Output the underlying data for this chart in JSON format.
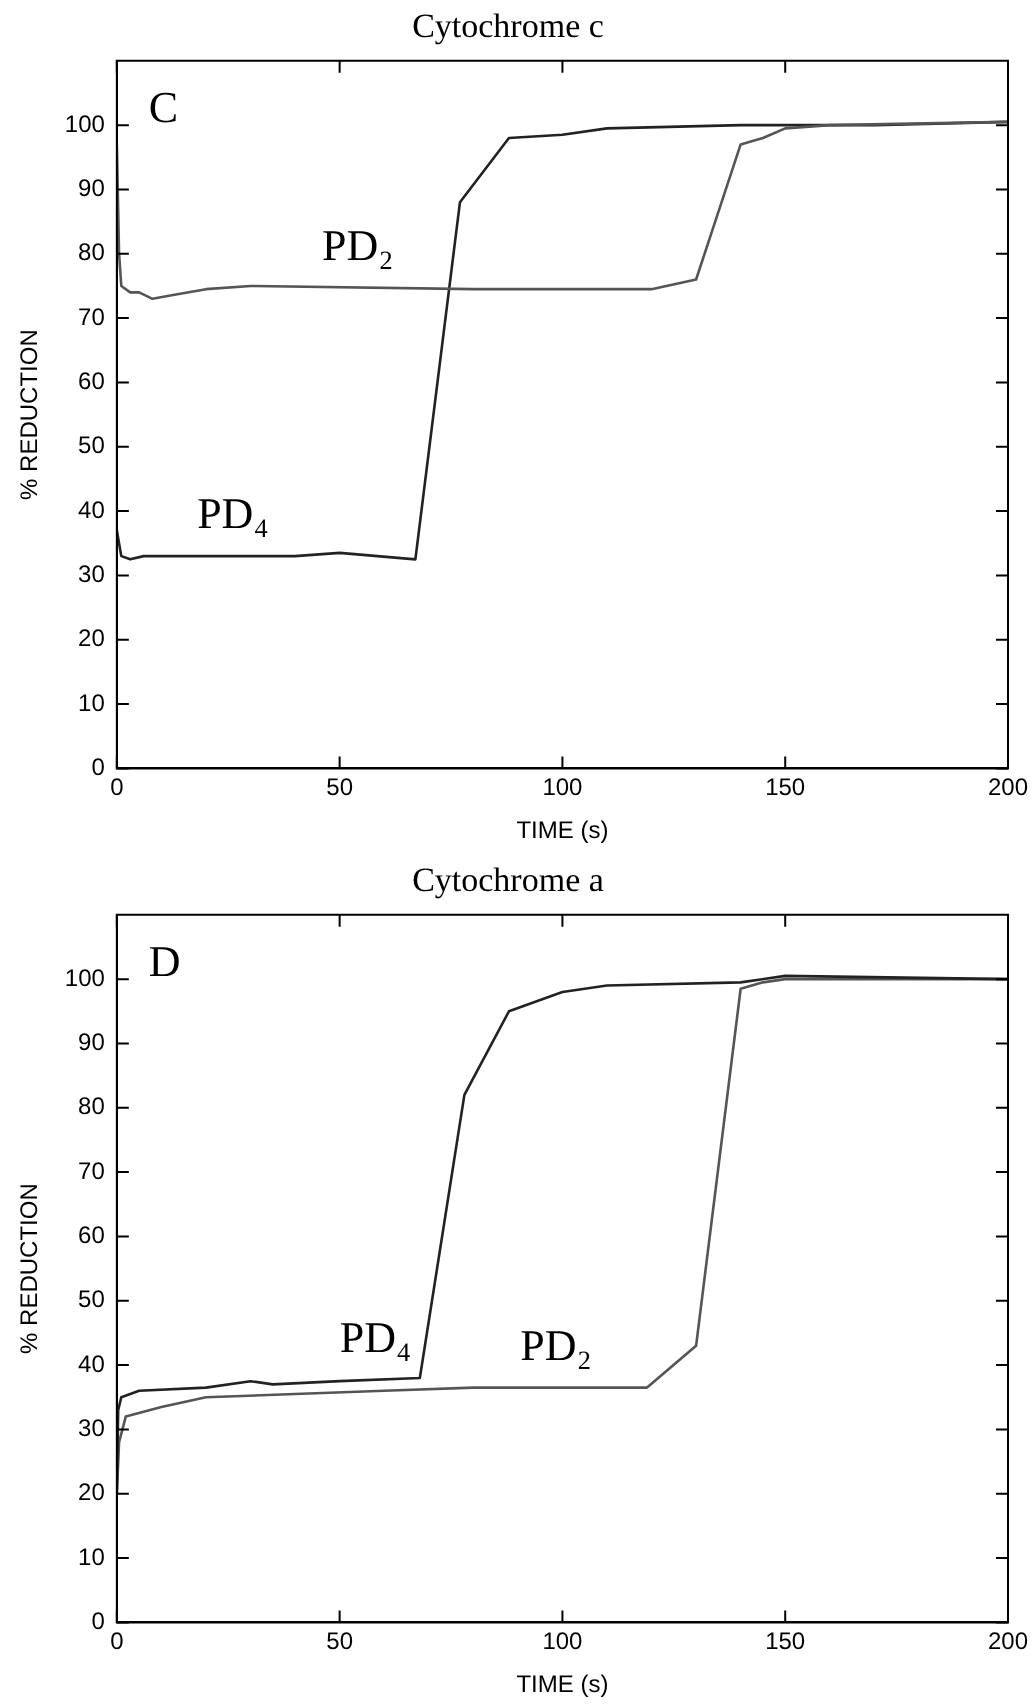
{
  "chart_data": [
    {
      "type": "line",
      "title": "Cytochrome c",
      "xlabel": "TIME (s)",
      "ylabel": "% REDUCTION",
      "annotations": [
        "C"
      ],
      "xlim": [
        0,
        200
      ],
      "xticks": [
        0,
        50,
        100,
        150,
        200
      ],
      "ylim": [
        0,
        110
      ],
      "yticks": [
        0,
        10,
        20,
        30,
        40,
        50,
        60,
        70,
        80,
        90,
        100
      ],
      "grid": false,
      "legend": false,
      "marker": "none",
      "line_style": "solid",
      "series": [
        {
          "name": "PD₂",
          "color": "#555555",
          "x": [
            0,
            0.5,
            1,
            3,
            5,
            8,
            12,
            20,
            30,
            80,
            120,
            130,
            140,
            145,
            150,
            160,
            200
          ],
          "values": [
            97,
            80,
            75,
            74,
            74,
            73,
            73.5,
            74.5,
            75,
            74.5,
            74.5,
            76,
            97,
            98,
            99.5,
            100,
            100.5
          ]
        },
        {
          "name": "PD₄",
          "color": "#222222",
          "x": [
            0,
            1,
            3,
            6,
            14,
            40,
            50,
            67,
            77,
            88,
            100,
            110,
            140,
            170,
            200
          ],
          "values": [
            37,
            33,
            32.5,
            33,
            33,
            33,
            33.5,
            32.5,
            88,
            98,
            98.5,
            99.5,
            100,
            100,
            100.5
          ]
        }
      ]
    },
    {
      "type": "line",
      "title": "Cytochrome a",
      "xlabel": "TIME (s)",
      "ylabel": "% REDUCTION",
      "annotations": [
        "D"
      ],
      "xlim": [
        0,
        200
      ],
      "xticks": [
        0,
        50,
        100,
        150,
        200
      ],
      "ylim": [
        0,
        110
      ],
      "yticks": [
        0,
        10,
        20,
        30,
        40,
        50,
        60,
        70,
        80,
        90,
        100
      ],
      "grid": false,
      "legend": false,
      "marker": "none",
      "line_style": "solid",
      "series": [
        {
          "name": "PD₄",
          "color": "#222222",
          "x": [
            0,
            0.3,
            1,
            5,
            20,
            30,
            35,
            50,
            68,
            78,
            88,
            100,
            110,
            140,
            150,
            200
          ],
          "values": [
            20,
            33,
            35,
            36,
            36.5,
            37.5,
            37,
            37.5,
            38,
            82,
            95,
            98,
            99,
            99.5,
            100.5,
            100
          ]
        },
        {
          "name": "PD₂",
          "color": "#555555",
          "x": [
            0,
            0.5,
            2,
            10,
            20,
            40,
            60,
            80,
            119,
            130,
            140,
            145,
            150,
            200
          ],
          "values": [
            20,
            28,
            32,
            33.5,
            35,
            35.5,
            36,
            36.5,
            36.5,
            43,
            98.5,
            99.5,
            100,
            100
          ]
        }
      ]
    }
  ]
}
